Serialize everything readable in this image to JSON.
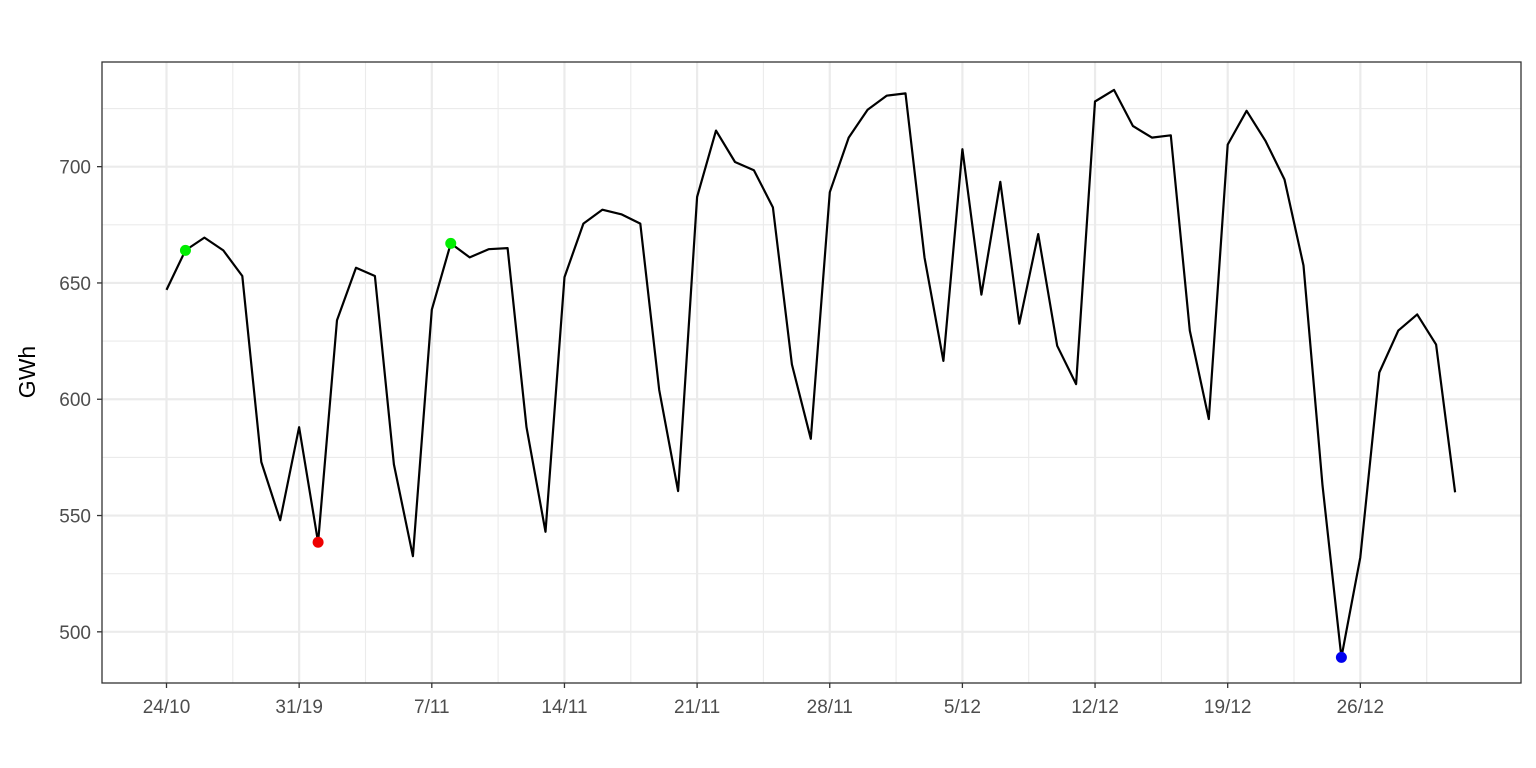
{
  "chart_data": {
    "type": "line",
    "title": "",
    "xlabel": "",
    "ylabel": "GWh",
    "x_start": "2022-10-24",
    "x_tick_labels": [
      "24/10",
      "31/19",
      "7/11",
      "14/11",
      "21/11",
      "28/11",
      "5/12",
      "12/12",
      "19/12",
      "26/12"
    ],
    "y_ticks": [
      500,
      550,
      600,
      650,
      700
    ],
    "ylim": [
      478,
      745
    ],
    "grid": true,
    "series": [
      {
        "color": "#000000",
        "values": [
          647,
          664,
          669.5,
          664,
          653,
          573,
          548,
          588,
          538.5,
          634,
          656.5,
          653,
          572,
          532.5,
          638.5,
          667,
          661,
          664.5,
          665,
          588,
          543,
          652.5,
          675.5,
          681.5,
          679.5,
          675.5,
          604,
          560.5,
          687,
          715.5,
          702,
          698.5,
          682.5,
          615,
          583,
          689,
          712.5,
          724.5,
          730.5,
          731.5,
          661,
          616.5,
          707.5,
          645,
          693.5,
          632.5,
          671,
          623,
          606.5,
          728,
          733,
          717.5,
          712.5,
          713.5,
          629.5,
          591.5,
          709.5,
          724,
          711,
          694.5,
          657.5,
          563,
          489,
          532,
          611.5,
          629.5,
          636.5,
          623.5,
          560
        ]
      }
    ],
    "highlights": [
      {
        "index": 1,
        "value": 664,
        "color": "#00ee00"
      },
      {
        "index": 15,
        "value": 667,
        "color": "#00ee00"
      },
      {
        "index": 8,
        "value": 538.5,
        "color": "#ee0000"
      },
      {
        "index": 62,
        "value": 489,
        "color": "#0000ee"
      }
    ]
  }
}
